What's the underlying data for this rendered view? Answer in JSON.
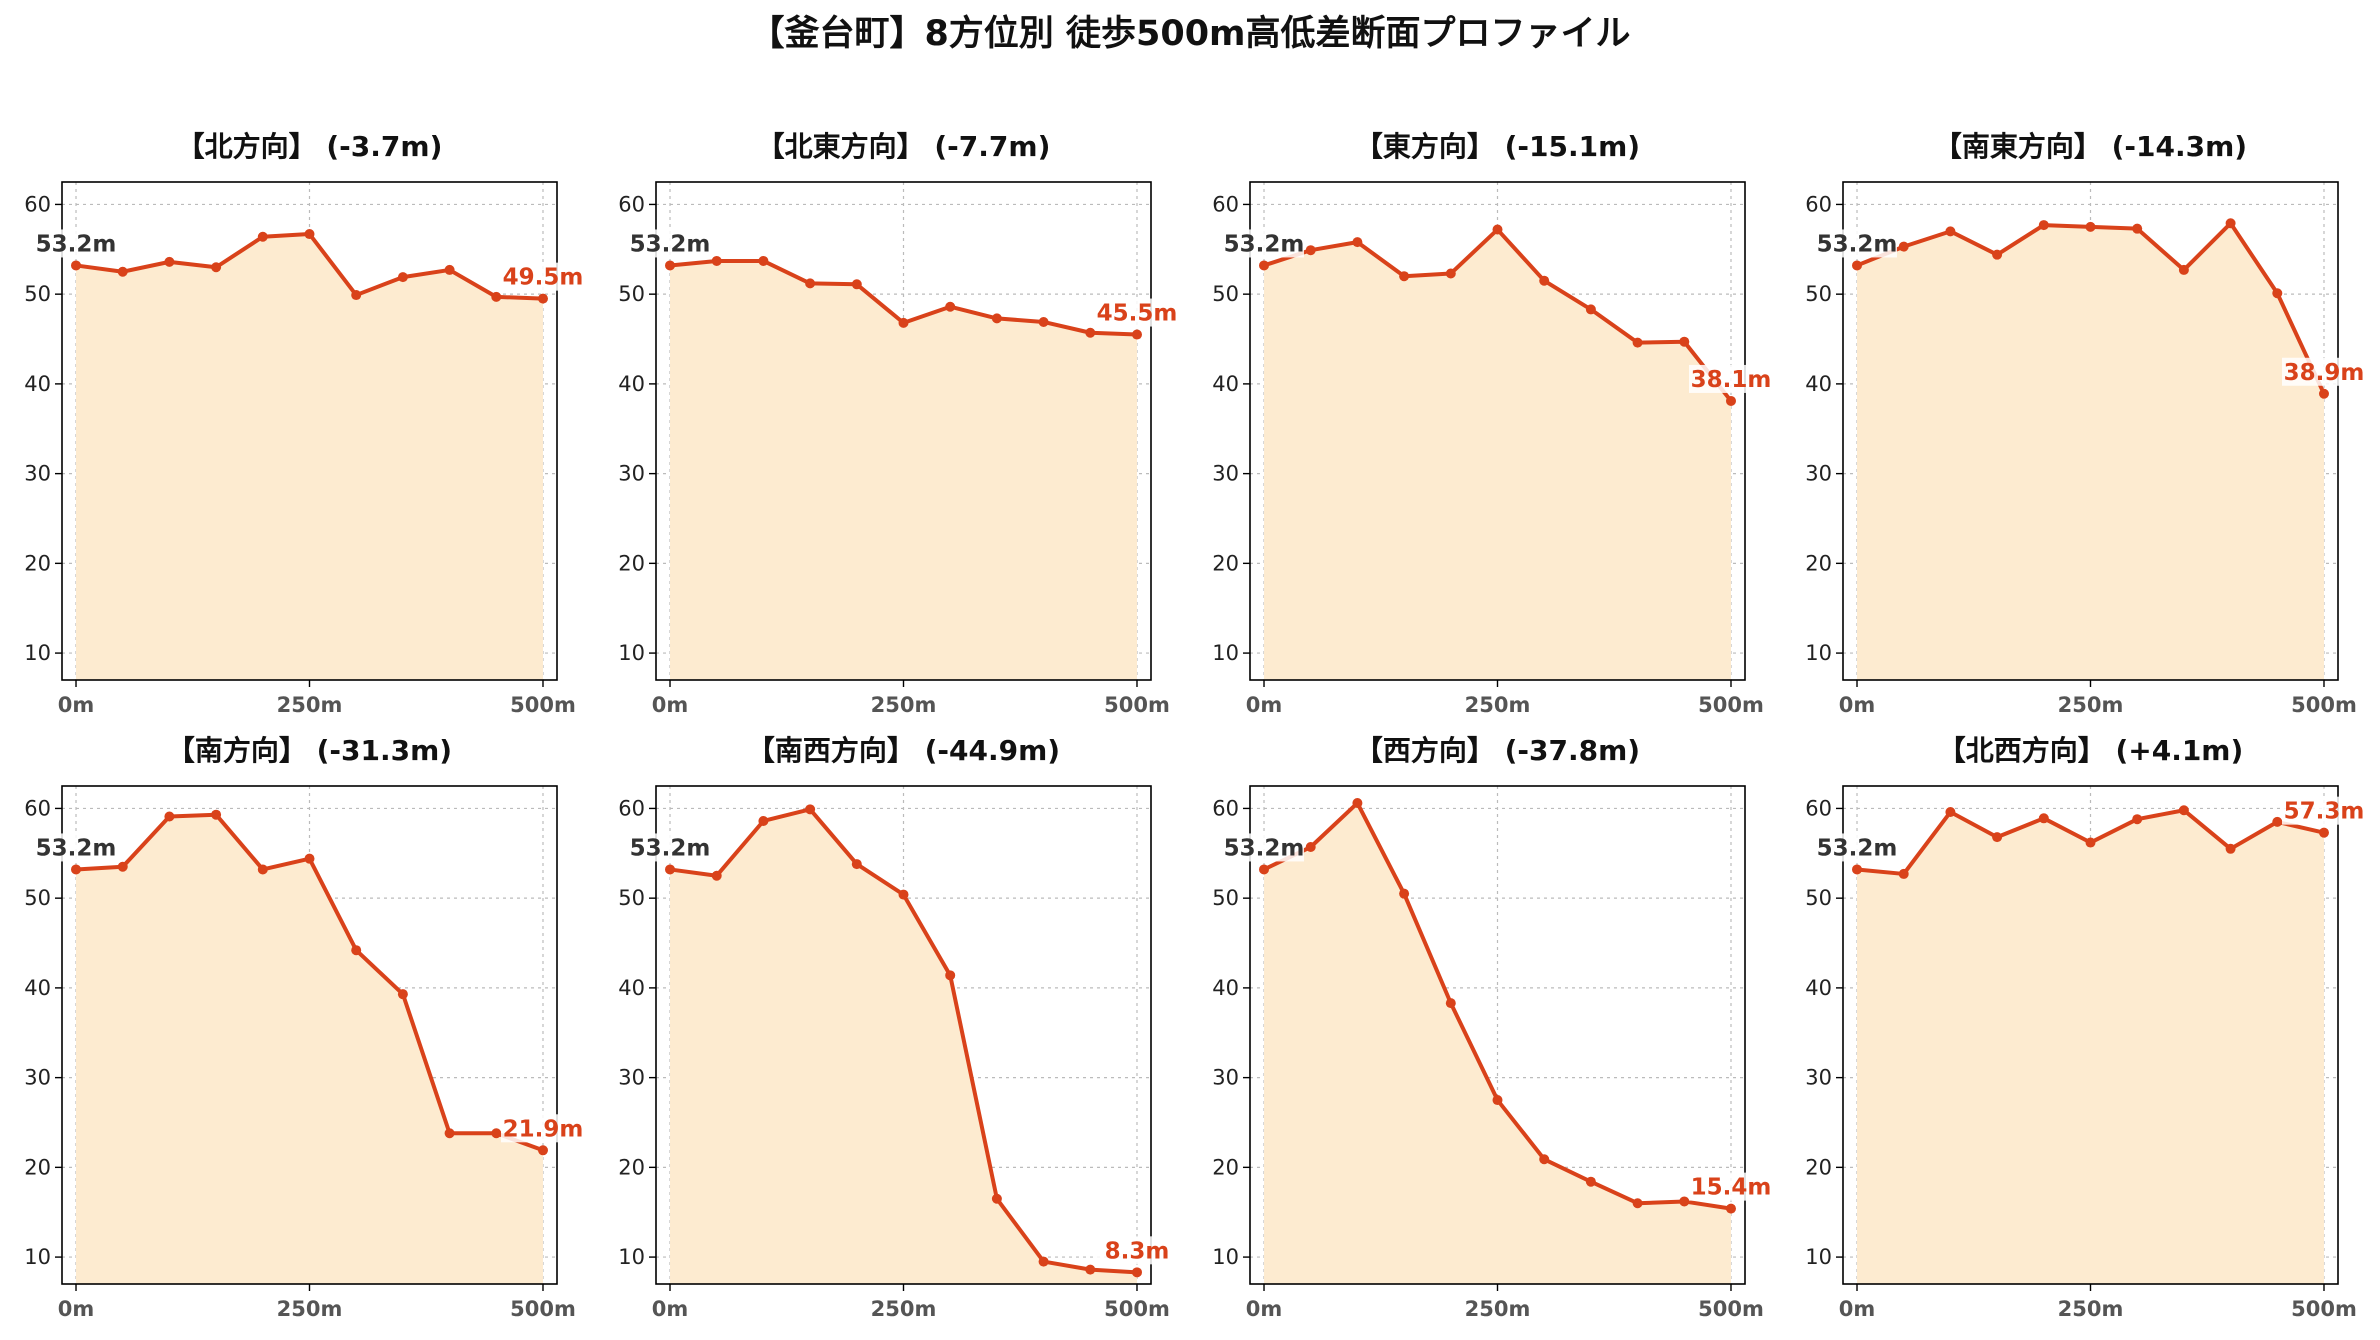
{
  "title": "【釜台町】8方位別 徒歩500m高低差断面プロファイル",
  "colors": {
    "line": "#d9421a",
    "fill": "#fdebd0",
    "grid": "#bbbbbb",
    "frame": "#000000"
  },
  "chart_data": [
    {
      "type": "area",
      "title": "【北方向】 (-3.7m)",
      "x": [
        0,
        50,
        100,
        150,
        200,
        250,
        300,
        350,
        400,
        450,
        500
      ],
      "values": [
        53.2,
        52.5,
        53.6,
        53.0,
        56.4,
        56.7,
        49.9,
        51.9,
        52.7,
        49.7,
        49.5
      ],
      "xticks": [
        "0m",
        "250m",
        "500m"
      ],
      "yticks": [
        10,
        20,
        30,
        40,
        50,
        60
      ],
      "ylim": [
        7,
        62.5
      ],
      "xlim": [
        -15,
        515
      ],
      "start_label": "53.2m",
      "end_label": "49.5m",
      "grid": true
    },
    {
      "type": "area",
      "title": "【北東方向】 (-7.7m)",
      "x": [
        0,
        50,
        100,
        150,
        200,
        250,
        300,
        350,
        400,
        450,
        500
      ],
      "values": [
        53.2,
        53.7,
        53.7,
        51.2,
        51.1,
        46.8,
        48.6,
        47.3,
        46.9,
        45.7,
        45.5
      ],
      "xticks": [
        "0m",
        "250m",
        "500m"
      ],
      "yticks": [
        10,
        20,
        30,
        40,
        50,
        60
      ],
      "ylim": [
        7,
        62.5
      ],
      "xlim": [
        -15,
        515
      ],
      "start_label": "53.2m",
      "end_label": "45.5m",
      "grid": true
    },
    {
      "type": "area",
      "title": "【東方向】 (-15.1m)",
      "x": [
        0,
        50,
        100,
        150,
        200,
        250,
        300,
        350,
        400,
        450,
        500
      ],
      "values": [
        53.2,
        54.9,
        55.8,
        52.0,
        52.3,
        57.2,
        51.5,
        48.3,
        44.6,
        44.7,
        38.1
      ],
      "xticks": [
        "0m",
        "250m",
        "500m"
      ],
      "yticks": [
        10,
        20,
        30,
        40,
        50,
        60
      ],
      "ylim": [
        7,
        62.5
      ],
      "xlim": [
        -15,
        515
      ],
      "start_label": "53.2m",
      "end_label": "38.1m",
      "grid": true
    },
    {
      "type": "area",
      "title": "【南東方向】 (-14.3m)",
      "x": [
        0,
        50,
        100,
        150,
        200,
        250,
        300,
        350,
        400,
        450,
        500
      ],
      "values": [
        53.2,
        55.3,
        57.0,
        54.4,
        57.7,
        57.5,
        57.3,
        52.7,
        57.9,
        50.1,
        38.9
      ],
      "xticks": [
        "0m",
        "250m",
        "500m"
      ],
      "yticks": [
        10,
        20,
        30,
        40,
        50,
        60
      ],
      "ylim": [
        7,
        62.5
      ],
      "xlim": [
        -15,
        515
      ],
      "start_label": "53.2m",
      "end_label": "38.9m",
      "grid": true
    },
    {
      "type": "area",
      "title": "【南方向】 (-31.3m)",
      "x": [
        0,
        50,
        100,
        150,
        200,
        250,
        300,
        350,
        400,
        450,
        500
      ],
      "values": [
        53.2,
        53.5,
        59.1,
        59.3,
        53.2,
        54.4,
        44.2,
        39.3,
        23.8,
        23.8,
        21.9
      ],
      "xticks": [
        "0m",
        "250m",
        "500m"
      ],
      "yticks": [
        10,
        20,
        30,
        40,
        50,
        60
      ],
      "ylim": [
        7,
        62.5
      ],
      "xlim": [
        -15,
        515
      ],
      "start_label": "53.2m",
      "end_label": "21.9m",
      "grid": true
    },
    {
      "type": "area",
      "title": "【南西方向】 (-44.9m)",
      "x": [
        0,
        50,
        100,
        150,
        200,
        250,
        300,
        350,
        400,
        450,
        500
      ],
      "values": [
        53.2,
        52.5,
        58.6,
        59.9,
        53.8,
        50.4,
        41.4,
        16.5,
        9.5,
        8.6,
        8.3
      ],
      "xticks": [
        "0m",
        "250m",
        "500m"
      ],
      "yticks": [
        10,
        20,
        30,
        40,
        50,
        60
      ],
      "ylim": [
        7,
        62.5
      ],
      "xlim": [
        -15,
        515
      ],
      "start_label": "53.2m",
      "end_label": "8.3m",
      "grid": true
    },
    {
      "type": "area",
      "title": "【西方向】 (-37.8m)",
      "x": [
        0,
        50,
        100,
        150,
        200,
        250,
        300,
        350,
        400,
        450,
        500
      ],
      "values": [
        53.2,
        55.7,
        60.6,
        50.5,
        38.3,
        27.5,
        20.9,
        18.4,
        16.0,
        16.2,
        15.4
      ],
      "xticks": [
        "0m",
        "250m",
        "500m"
      ],
      "yticks": [
        10,
        20,
        30,
        40,
        50,
        60
      ],
      "ylim": [
        7,
        62.5
      ],
      "xlim": [
        -15,
        515
      ],
      "start_label": "53.2m",
      "end_label": "15.4m",
      "grid": true
    },
    {
      "type": "area",
      "title": "【北西方向】 (+4.1m)",
      "x": [
        0,
        50,
        100,
        150,
        200,
        250,
        300,
        350,
        400,
        450,
        500
      ],
      "values": [
        53.2,
        52.7,
        59.6,
        56.8,
        58.9,
        56.2,
        58.8,
        59.8,
        55.5,
        58.5,
        57.3
      ],
      "xticks": [
        "0m",
        "250m",
        "500m"
      ],
      "yticks": [
        10,
        20,
        30,
        40,
        50,
        60
      ],
      "ylim": [
        7,
        62.5
      ],
      "xlim": [
        -15,
        515
      ],
      "start_label": "53.2m",
      "end_label": "57.3m",
      "grid": true
    }
  ]
}
